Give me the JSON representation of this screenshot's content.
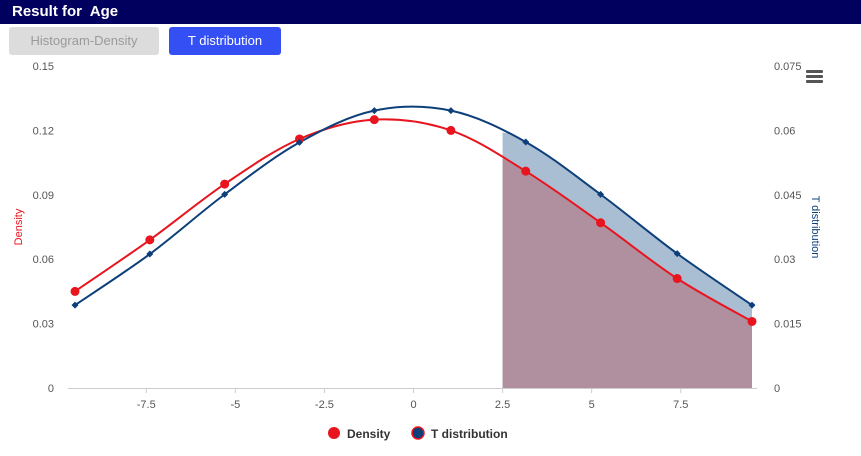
{
  "header": {
    "title": "Result for  Age"
  },
  "buttons": {
    "histogram_label": "Histogram-Density",
    "t_label": "T distribution"
  },
  "icons": {
    "menu": "hamburger-menu-icon"
  },
  "colors": {
    "density": "#e8141e",
    "t": "#0d3f7a",
    "shade_t": "#a9bdd3",
    "shade_density": "#b0909f"
  },
  "chart_data": {
    "type": "line",
    "xlim": [
      -9.5,
      9.5
    ],
    "x_ticks": [
      "-7.5",
      "-5",
      "-2.5",
      "0",
      "2.5",
      "5",
      "7.5"
    ],
    "x_tick_values": [
      -7.5,
      -5,
      -2.5,
      0,
      2.5,
      5,
      7.5
    ],
    "y_left": {
      "label": "Density",
      "ylim": [
        0,
        0.15
      ],
      "ticks": [
        "0",
        "0.03",
        "0.06",
        "0.09",
        "0.12",
        "0.15"
      ]
    },
    "y_right": {
      "label": "T distribution",
      "ylim": [
        0,
        0.075
      ],
      "ticks": [
        "0",
        "0.015",
        "0.03",
        "0.045",
        "0.06",
        "0.075"
      ]
    },
    "shade_from": 2.5,
    "series": [
      {
        "name": "Density",
        "axis": "left",
        "x": [
          -9.5,
          -7.4,
          -5.3,
          -3.2,
          -1.1,
          1.05,
          3.15,
          5.25,
          7.4,
          9.5
        ],
        "y": [
          0.045,
          0.069,
          0.095,
          0.116,
          0.125,
          0.12,
          0.101,
          0.077,
          0.051,
          0.031
        ]
      },
      {
        "name": "T distribution",
        "axis": "right",
        "x": [
          -9.5,
          -7.4,
          -5.3,
          -3.2,
          -1.1,
          1.05,
          3.15,
          5.25,
          7.4,
          9.5
        ],
        "y": [
          0.0193,
          0.0312,
          0.0451,
          0.0572,
          0.0646,
          0.0646,
          0.0573,
          0.0451,
          0.0313,
          0.0193
        ]
      }
    ],
    "legend": "bottom-center"
  }
}
